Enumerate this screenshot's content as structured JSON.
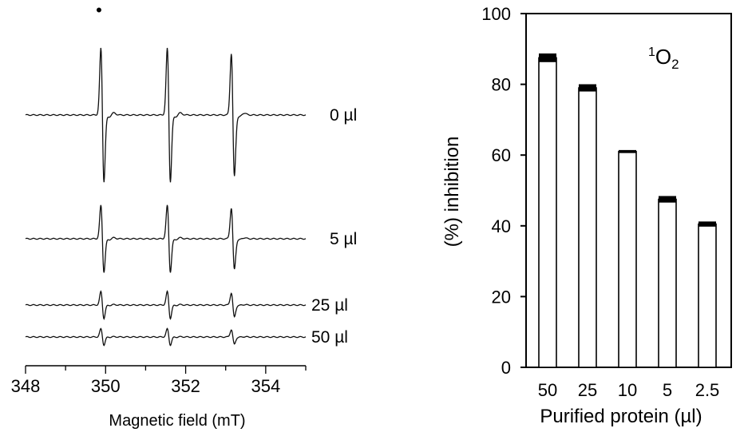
{
  "chart_data": [
    {
      "type": "line",
      "xlabel": "Magnetic field (mT)",
      "xlim": [
        348,
        355
      ],
      "x_ticks": [
        "348",
        "350",
        "352",
        "354"
      ],
      "marker": "•",
      "series": [
        {
          "name": "0 µl",
          "peak_fields": [
            349.92,
            351.58,
            353.18
          ],
          "amplitudes": [
            1.0,
            1.0,
            0.92
          ]
        },
        {
          "name": "5 µl",
          "peak_fields": [
            349.92,
            351.58,
            353.18
          ],
          "amplitudes": [
            0.5,
            0.5,
            0.46
          ]
        },
        {
          "name": "25 µl",
          "peak_fields": [
            349.92,
            351.58,
            353.18
          ],
          "amplitudes": [
            0.2,
            0.2,
            0.18
          ]
        },
        {
          "name": "50 µl",
          "peak_fields": [
            349.92,
            351.58,
            353.18
          ],
          "amplitudes": [
            0.12,
            0.12,
            0.11
          ]
        }
      ]
    },
    {
      "type": "bar",
      "annotation": {
        "base": "O",
        "sup": "1",
        "sub": "2"
      },
      "categories": [
        "50",
        "25",
        "10",
        "5",
        "2.5"
      ],
      "values": [
        87.5,
        79,
        61,
        47.5,
        40.5
      ],
      "errors": [
        1.0,
        0.8,
        0.2,
        0.7,
        0.5
      ],
      "xlabel": "Purified protein  (µl)",
      "ylabel": "(%) inhibition",
      "ylim": [
        0,
        100
      ],
      "y_ticks": [
        0,
        20,
        40,
        60,
        80,
        100
      ]
    }
  ]
}
